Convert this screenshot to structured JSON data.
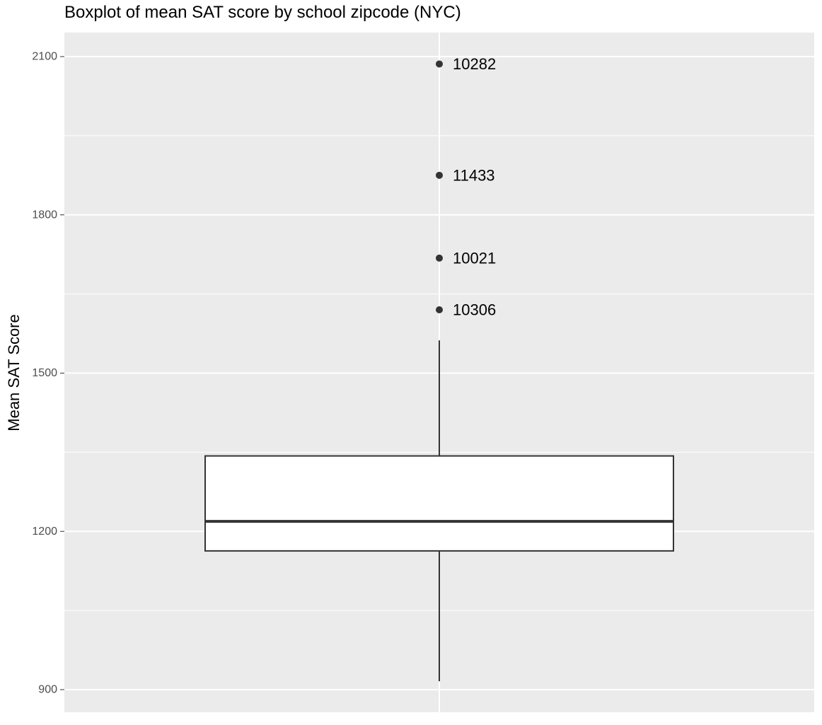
{
  "chart_data": {
    "type": "boxplot",
    "title": "Boxplot of mean SAT score by school zipcode (NYC)",
    "xlabel": "",
    "ylabel": "Mean SAT Score",
    "ylim": [
      887,
      2130
    ],
    "y_ticks": [
      900,
      1200,
      1500,
      1800,
      2100
    ],
    "y_tick_labels": [
      "900",
      "1200",
      "1500",
      "1800",
      "2100"
    ],
    "y_minor_ticks": [
      1050,
      1350,
      1650,
      1950
    ],
    "grid": true,
    "box": {
      "lower_whisker": 916,
      "q1": 1163,
      "median": 1219,
      "q3": 1343,
      "upper_whisker": 1562
    },
    "outliers": [
      {
        "label": "10282",
        "value": 2086
      },
      {
        "label": "11433",
        "value": 1875
      },
      {
        "label": "10021",
        "value": 1718
      },
      {
        "label": "10306",
        "value": 1620
      }
    ],
    "colors": {
      "panel_background": "#ebebeb",
      "grid_line": "#ffffff",
      "box_fill": "#ffffff",
      "box_stroke": "#333333",
      "point": "#333333",
      "tick_label": "#4d4d4d",
      "text": "#000000"
    }
  }
}
